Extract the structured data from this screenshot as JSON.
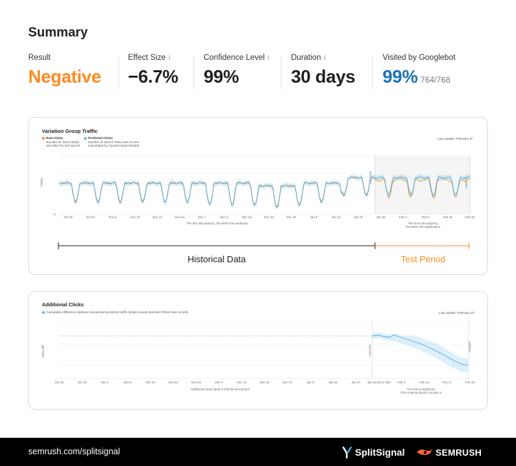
{
  "summary": {
    "title": "Summary",
    "metrics": [
      {
        "label": "Result",
        "value": "Negative",
        "info": false,
        "color": "#ff8a1f"
      },
      {
        "label": "Effect Size",
        "value": "−6.7%",
        "info": true,
        "color": "#1f1f1f"
      },
      {
        "label": "Confidence Level",
        "value": "99%",
        "info": true,
        "color": "#1f1f1f"
      },
      {
        "label": "Duration",
        "value": "30 days",
        "info": true,
        "color": "#1f1f1f"
      },
      {
        "label": "Visited by Googlebot",
        "value": "99%",
        "sub": "764/768",
        "info": false,
        "color": "#1a73b8"
      }
    ],
    "info_glyph": "i"
  },
  "traffic_chart": {
    "title": "Variation Group Traffic",
    "legend": {
      "real": {
        "label": "Real Clicks",
        "desc_1": "Number of clicks before",
        "desc_2": "and after the test launch",
        "color": "#f39a2c"
      },
      "predicted": {
        "label": "Predicted Clicks",
        "desc_1": "Number of clicks if there was no test",
        "desc_2": "(calculated by Causal Impact Model)",
        "color": "#5fb6ea"
      }
    },
    "last_update": "Last update: February 27",
    "y_label": "Clicks",
    "zero_label": "0",
    "x_ticks": [
      "Oct 20",
      "Oct 27",
      "Nov 3",
      "Nov 10",
      "Nov 17",
      "Nov 24",
      "Dec 1",
      "Dec 8",
      "Dec 15",
      "Dec 22",
      "Dec 29",
      "Jan 5",
      "Jan 12",
      "Jan 19",
      "Jan 26",
      "Feb 2",
      "Feb 9",
      "Feb 16",
      "Feb 23"
    ],
    "launched_label": "Launched",
    "stopped_label": "Stopped",
    "note_left": "The less discrepancy, the better the prediction",
    "note_right_1": "The more discrepancy,",
    "note_right_2": "the better the significance",
    "historical_label": "Historical Data",
    "test_label": "Test Period"
  },
  "additional_chart": {
    "title": "Additional Clicks",
    "legend": "Cumulative difference between actual and predicted traffic (what it would look like if there was no test)",
    "last_update": "Last update: February 27",
    "y_label": "Clicks diff",
    "x_ticks": [
      "Oct 18",
      "Oct 23",
      "Nov 1",
      "Nov 8",
      "Nov 15",
      "Nov 22",
      "Nov 29",
      "Dec 6",
      "Dec 13",
      "Dec 20",
      "Dec 27",
      "Jan 3",
      "Jan 10",
      "Jan 17",
      "Jan 24 (9:42 AM)",
      "Feb 3",
      "Feb 10",
      "Feb 17",
      "Feb 23"
    ],
    "launched_label": "Launched",
    "stopped_label": "Stopped",
    "note_left": "Additional clicks equal 0 until the test launch",
    "note_right_1": "The test is significant",
    "note_right_2": "if the interval doesn't include 0",
    "color": "#5fb6ea"
  },
  "footer": {
    "url": "semrush.com/splitsignal",
    "brand_split": "SplitSignal",
    "brand_semrush": "SEMRUSH"
  }
}
